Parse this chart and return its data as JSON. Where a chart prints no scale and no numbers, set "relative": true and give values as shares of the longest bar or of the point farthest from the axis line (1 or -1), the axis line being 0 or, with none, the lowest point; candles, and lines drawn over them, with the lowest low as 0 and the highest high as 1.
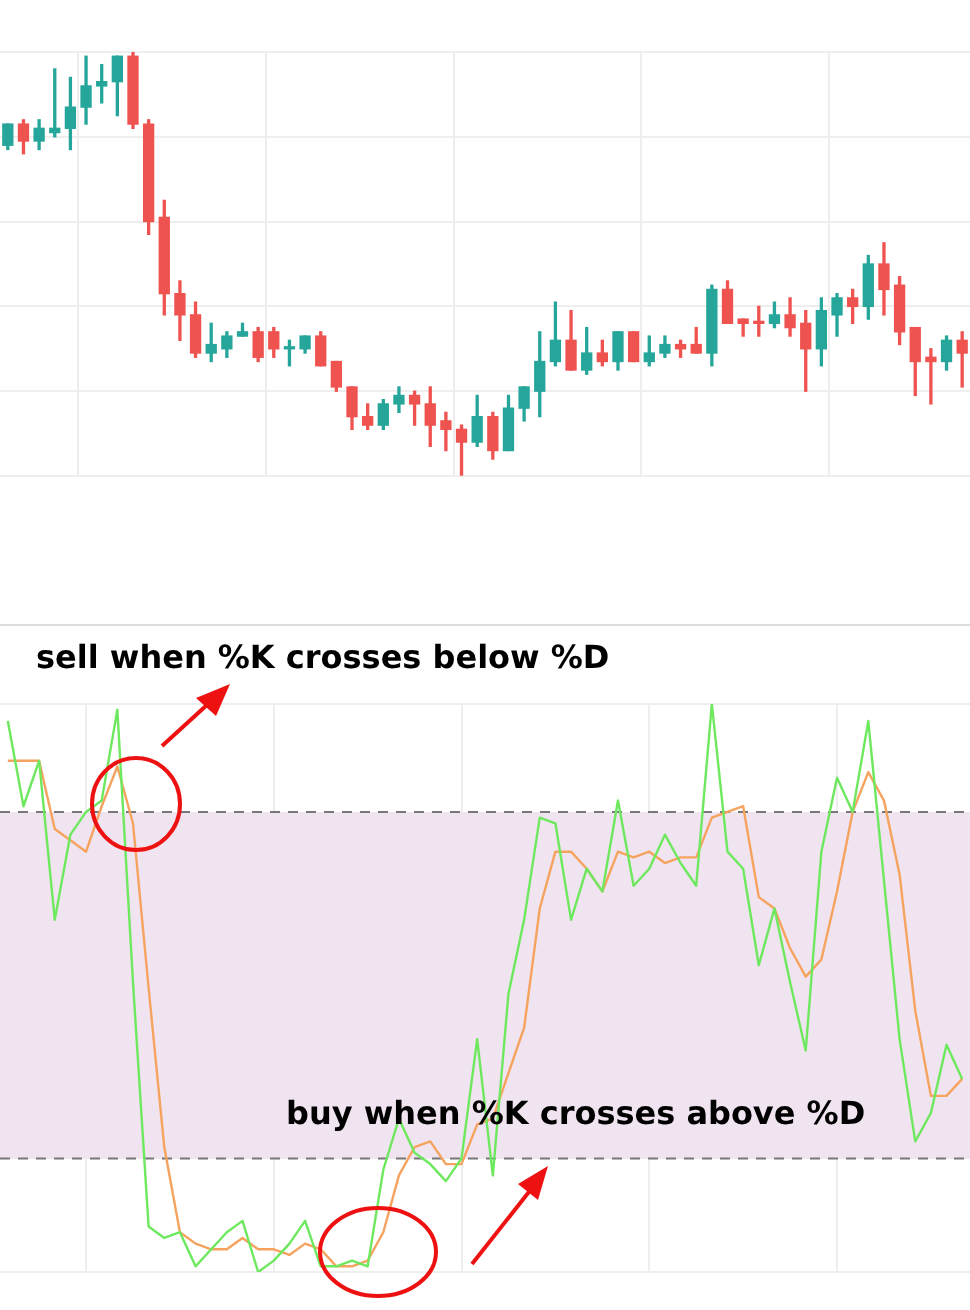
{
  "chart_data": [
    {
      "type": "candlestick",
      "relative": true,
      "grid": true,
      "legend": false,
      "categories": [
        null,
        null,
        null,
        null,
        null,
        null,
        null,
        null,
        null,
        null,
        null,
        null,
        null,
        null,
        null,
        null,
        null,
        null,
        null,
        null,
        null,
        null,
        null,
        null,
        null,
        null,
        null,
        null,
        null,
        null,
        null,
        null,
        null,
        null,
        null,
        null,
        null,
        null,
        null,
        null,
        null,
        null,
        null,
        null,
        null,
        null,
        null,
        null,
        null,
        null,
        null,
        null,
        null,
        null,
        null,
        null,
        null,
        null,
        null,
        null,
        null,
        null
      ],
      "ohlc": [
        [
          0.78,
          0.83,
          0.77,
          0.83
        ],
        [
          0.83,
          0.84,
          0.76,
          0.79
        ],
        [
          0.79,
          0.84,
          0.77,
          0.82
        ],
        [
          0.81,
          0.96,
          0.8,
          0.82
        ],
        [
          0.82,
          0.94,
          0.77,
          0.87
        ],
        [
          0.87,
          0.99,
          0.83,
          0.92
        ],
        [
          0.92,
          0.97,
          0.88,
          0.93
        ],
        [
          0.93,
          0.99,
          0.85,
          0.99
        ],
        [
          0.99,
          1,
          0.82,
          0.83
        ],
        [
          0.83,
          0.84,
          0.57,
          0.6
        ],
        [
          0.61,
          0.65,
          0.38,
          0.43
        ],
        [
          0.43,
          0.46,
          0.32,
          0.38
        ],
        [
          0.38,
          0.41,
          0.28,
          0.29
        ],
        [
          0.29,
          0.36,
          0.27,
          0.31
        ],
        [
          0.3,
          0.34,
          0.28,
          0.33
        ],
        [
          0.33,
          0.36,
          0.33,
          0.34
        ],
        [
          0.34,
          0.35,
          0.27,
          0.28
        ],
        [
          0.34,
          0.35,
          0.28,
          0.3
        ],
        [
          0.3,
          0.32,
          0.26,
          0.3
        ],
        [
          0.3,
          0.33,
          0.29,
          0.33
        ],
        [
          0.33,
          0.34,
          0.26,
          0.26
        ],
        [
          0.27,
          0.27,
          0.2,
          0.21
        ],
        [
          0.21,
          0.21,
          0.11,
          0.14
        ],
        [
          0.14,
          0.17,
          0.11,
          0.12
        ],
        [
          0.12,
          0.18,
          0.11,
          0.17
        ],
        [
          0.17,
          0.21,
          0.15,
          0.19
        ],
        [
          0.19,
          0.2,
          0.12,
          0.17
        ],
        [
          0.17,
          0.21,
          0.07,
          0.12
        ],
        [
          0.13,
          0.15,
          0.06,
          0.11
        ],
        [
          0.11,
          0.12,
          0,
          0.08
        ],
        [
          0.08,
          0.19,
          0.07,
          0.14
        ],
        [
          0.14,
          0.15,
          0.04,
          0.06
        ],
        [
          0.06,
          0.19,
          0.06,
          0.16
        ],
        [
          0.16,
          0.21,
          0.13,
          0.21
        ],
        [
          0.2,
          0.34,
          0.14,
          0.27
        ],
        [
          0.27,
          0.41,
          0.26,
          0.32
        ],
        [
          0.32,
          0.39,
          0.25,
          0.25
        ],
        [
          0.25,
          0.35,
          0.24,
          0.29
        ],
        [
          0.29,
          0.32,
          0.26,
          0.27
        ],
        [
          0.27,
          0.34,
          0.25,
          0.34
        ],
        [
          0.34,
          0.34,
          0.27,
          0.27
        ],
        [
          0.27,
          0.33,
          0.26,
          0.29
        ],
        [
          0.29,
          0.33,
          0.28,
          0.31
        ],
        [
          0.31,
          0.32,
          0.28,
          0.3
        ],
        [
          0.31,
          0.35,
          0.29,
          0.29
        ],
        [
          0.29,
          0.45,
          0.26,
          0.44
        ],
        [
          0.44,
          0.46,
          0.36,
          0.36
        ],
        [
          0.37,
          0.37,
          0.33,
          0.36
        ],
        [
          0.36,
          0.4,
          0.33,
          0.36
        ],
        [
          0.36,
          0.41,
          0.35,
          0.38
        ],
        [
          0.38,
          0.42,
          0.33,
          0.35
        ],
        [
          0.36,
          0.39,
          0.2,
          0.3
        ],
        [
          0.3,
          0.42,
          0.26,
          0.39
        ],
        [
          0.38,
          0.43,
          0.33,
          0.42
        ],
        [
          0.42,
          0.44,
          0.36,
          0.4
        ],
        [
          0.4,
          0.52,
          0.37,
          0.5
        ],
        [
          0.5,
          0.55,
          0.38,
          0.44
        ],
        [
          0.45,
          0.47,
          0.31,
          0.34
        ],
        [
          0.35,
          0.35,
          0.19,
          0.27
        ],
        [
          0.28,
          0.3,
          0.17,
          0.27
        ],
        [
          0.27,
          0.33,
          0.25,
          0.32
        ],
        [
          0.32,
          0.34,
          0.21,
          0.29
        ]
      ],
      "colors": [
        "#26a69a",
        "#ef5350",
        "#26a69a",
        "#26a69a",
        "#26a69a",
        "#26a69a",
        "#26a69a",
        "#26a69a",
        "#ef5350",
        "#ef5350",
        "#ef5350",
        "#ef5350",
        "#ef5350",
        "#26a69a",
        "#26a69a",
        "#26a69a",
        "#ef5350",
        "#ef5350",
        "#26a69a",
        "#26a69a",
        "#ef5350",
        "#ef5350",
        "#ef5350",
        "#ef5350",
        "#26a69a",
        "#26a69a",
        "#ef5350",
        "#ef5350",
        "#ef5350",
        "#ef5350",
        "#26a69a",
        "#ef5350",
        "#26a69a",
        "#26a69a",
        "#26a69a",
        "#26a69a",
        "#ef5350",
        "#26a69a",
        "#ef5350",
        "#26a69a",
        "#ef5350",
        "#26a69a",
        "#26a69a",
        "#ef5350",
        "#ef5350",
        "#26a69a",
        "#ef5350",
        "#ef5350",
        "#ef5350",
        "#26a69a",
        "#ef5350",
        "#ef5350",
        "#26a69a",
        "#26a69a",
        "#ef5350",
        "#26a69a",
        "#ef5350",
        "#ef5350",
        "#ef5350",
        "#ef5350",
        "#26a69a",
        "#ef5350"
      ]
    },
    {
      "type": "line",
      "relative": true,
      "grid": true,
      "legend": false,
      "marker": "none",
      "categories": [
        null,
        null,
        null,
        null,
        null,
        null,
        null,
        null,
        null,
        null,
        null,
        null,
        null,
        null,
        null,
        null,
        null,
        null,
        null,
        null,
        null,
        null,
        null,
        null,
        null,
        null,
        null,
        null,
        null,
        null,
        null,
        null,
        null,
        null,
        null,
        null,
        null,
        null,
        null,
        null,
        null,
        null,
        null,
        null,
        null,
        null,
        null,
        null,
        null,
        null,
        null,
        null,
        null,
        null,
        null,
        null,
        null,
        null,
        null,
        null,
        null,
        null
      ],
      "series": [
        {
          "color": "#6ee85e",
          "values": [
            0.97,
            0.82,
            0.9,
            0.62,
            0.77,
            0.81,
            0.83,
            0.99,
            0.51,
            0.08,
            0.06,
            0.07,
            0.01,
            0.04,
            0.07,
            0.09,
            0,
            0.02,
            0.05,
            0.09,
            0.01,
            0.01,
            0.02,
            0.01,
            0.18,
            0.27,
            0.21,
            0.19,
            0.16,
            0.2,
            0.41,
            0.17,
            0.49,
            0.62,
            0.8,
            0.79,
            0.62,
            0.71,
            0.67,
            0.83,
            0.68,
            0.71,
            0.77,
            0.72,
            0.68,
            1.0,
            0.74,
            0.71,
            0.54,
            0.64,
            0.51,
            0.39,
            0.74,
            0.87,
            0.81,
            0.97,
            0.69,
            0.41,
            0.23,
            0.28,
            0.4,
            0.34
          ]
        },
        {
          "color": "#f5a35f",
          "values": [
            0.9,
            0.9,
            0.9,
            0.78,
            0.76,
            0.74,
            0.82,
            0.89,
            0.79,
            0.5,
            0.22,
            0.07,
            0.05,
            0.04,
            0.04,
            0.06,
            0.04,
            0.04,
            0.03,
            0.05,
            0.04,
            0.01,
            0.01,
            0.02,
            0.07,
            0.17,
            0.22,
            0.23,
            0.19,
            0.19,
            0.26,
            0.27,
            0.35,
            0.43,
            0.64,
            0.74,
            0.74,
            0.71,
            0.67,
            0.74,
            0.73,
            0.74,
            0.72,
            0.73,
            0.73,
            0.8,
            0.81,
            0.82,
            0.66,
            0.64,
            0.57,
            0.52,
            0.55,
            0.67,
            0.81,
            0.88,
            0.83,
            0.7,
            0.46,
            0.31,
            0.31,
            0.34
          ]
        }
      ],
      "bands": [
        {
          "axis": "y",
          "from": 0.2,
          "to": 0.81,
          "color": "#f1e4f1"
        }
      ],
      "ref_lines": [
        {
          "axis": "y",
          "value": 0.81,
          "color": "#777777",
          "line_style": "dashed"
        },
        {
          "axis": "y",
          "value": 0.2,
          "color": "#777777",
          "line_style": "dashed"
        }
      ],
      "annotations": [
        "sell when %K crosses below %D",
        "buy when %K crosses above %D"
      ]
    }
  ]
}
